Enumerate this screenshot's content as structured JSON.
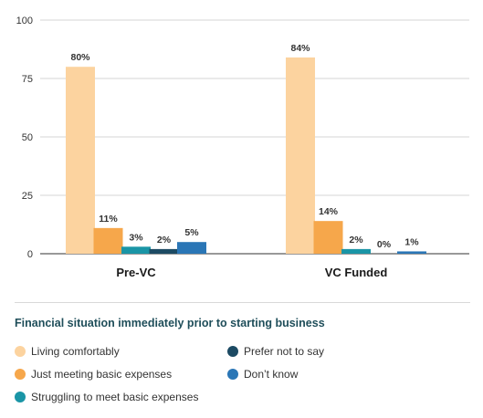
{
  "chart_data": {
    "type": "bar",
    "categories": [
      "Pre-VC",
      "VC Funded"
    ],
    "series": [
      {
        "name": "Living comfortably",
        "color": "#fcd39f",
        "values": [
          80,
          84
        ],
        "labels": [
          "80%",
          "84%"
        ]
      },
      {
        "name": "Just meeting basic expenses",
        "color": "#f6a74b",
        "values": [
          11,
          14
        ],
        "labels": [
          "11%",
          "14%"
        ]
      },
      {
        "name": "Struggling to meet basic expenses",
        "color": "#1a95a6",
        "values": [
          3,
          2
        ],
        "labels": [
          "3%",
          "2%"
        ]
      },
      {
        "name": "Prefer not to say",
        "color": "#1c4a63",
        "values": [
          2,
          0
        ],
        "labels": [
          "2%",
          "0%"
        ]
      },
      {
        "name": "Don’t know",
        "color": "#2a76b6",
        "values": [
          5,
          1
        ],
        "labels": [
          "5%",
          "1%"
        ]
      }
    ],
    "yticks": [
      "0",
      "25",
      "50",
      "75",
      "100"
    ],
    "ylim": [
      0,
      100
    ],
    "grid": true,
    "legend_title": "Financial situation immediately prior to starting business",
    "legend_placement": "bottom"
  }
}
